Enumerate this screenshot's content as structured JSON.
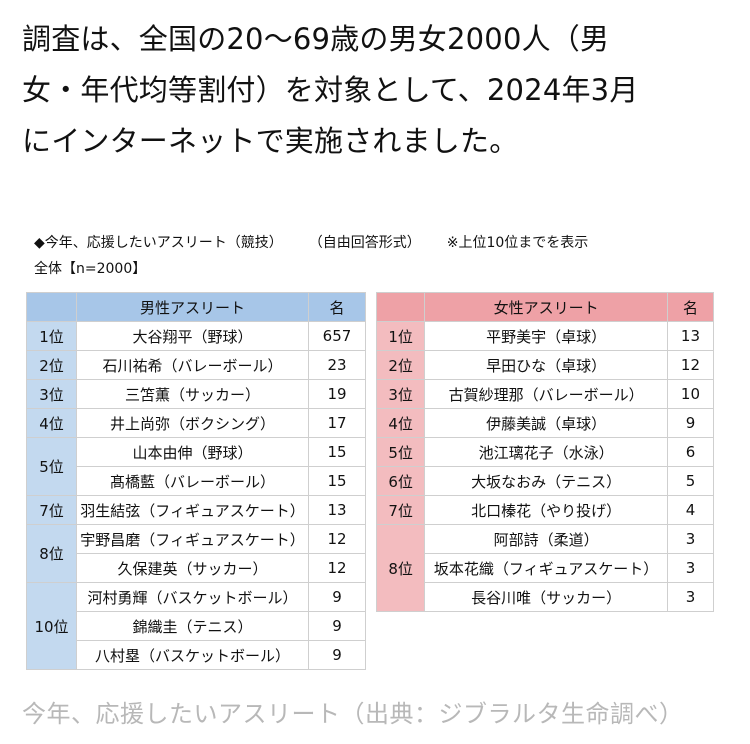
{
  "intro_lines": [
    "調査は、全国の20〜69歳の男女2000人（男",
    "女・年代均等割付）を対象として、2024年3月",
    "にインターネットで実施されました。"
  ],
  "survey": {
    "question": "◆今年、応援したいアスリート（競技）",
    "format": "（自由回答形式）",
    "note": "※上位10位までを表示",
    "base": "全体【n=2000】"
  },
  "men_table": {
    "header_label": "男性アスリート",
    "header_count": "名",
    "rows": [
      {
        "rank": "1位",
        "name": "大谷翔平（野球）",
        "count": "657"
      },
      {
        "rank": "2位",
        "name": "石川祐希（バレーボール）",
        "count": "23"
      },
      {
        "rank": "3位",
        "name": "三笘薫（サッカー）",
        "count": "19"
      },
      {
        "rank": "4位",
        "name": "井上尚弥（ボクシング）",
        "count": "17"
      },
      {
        "rank": "5位",
        "name": "山本由伸（野球）",
        "count": "15"
      },
      {
        "rank": "",
        "name": "髙橋藍（バレーボール）",
        "count": "15"
      },
      {
        "rank": "7位",
        "name": "羽生結弦（フィギュアスケート）",
        "count": "13"
      },
      {
        "rank": "8位",
        "name": "宇野昌磨（フィギュアスケート）",
        "count": "12"
      },
      {
        "rank": "",
        "name": "久保建英（サッカー）",
        "count": "12"
      },
      {
        "rank": "10位",
        "name": "河村勇輝（バスケットボール）",
        "count": "9"
      },
      {
        "rank": "",
        "name": "錦織圭（テニス）",
        "count": "9"
      },
      {
        "rank": "",
        "name": "八村塁（バスケットボール）",
        "count": "9"
      }
    ]
  },
  "women_table": {
    "header_label": "女性アスリート",
    "header_count": "名",
    "rows": [
      {
        "rank": "1位",
        "name": "平野美宇（卓球）",
        "count": "13"
      },
      {
        "rank": "2位",
        "name": "早田ひな（卓球）",
        "count": "12"
      },
      {
        "rank": "3位",
        "name": "古賀紗理那（バレーボール）",
        "count": "10"
      },
      {
        "rank": "4位",
        "name": "伊藤美誠（卓球）",
        "count": "9"
      },
      {
        "rank": "5位",
        "name": "池江璃花子（水泳）",
        "count": "6"
      },
      {
        "rank": "6位",
        "name": "大坂なおみ（テニス）",
        "count": "5"
      },
      {
        "rank": "7位",
        "name": "北口榛花（やり投げ）",
        "count": "4"
      },
      {
        "rank": "8位",
        "name": "阿部詩（柔道）",
        "count": "3"
      },
      {
        "rank": "",
        "name": "坂本花織（フィギュアスケート）",
        "count": "3"
      },
      {
        "rank": "",
        "name": "長谷川唯（サッカー）",
        "count": "3"
      }
    ]
  },
  "caption": "今年、応援したいアスリート（出典：ジブラルタ生命調べ）"
}
